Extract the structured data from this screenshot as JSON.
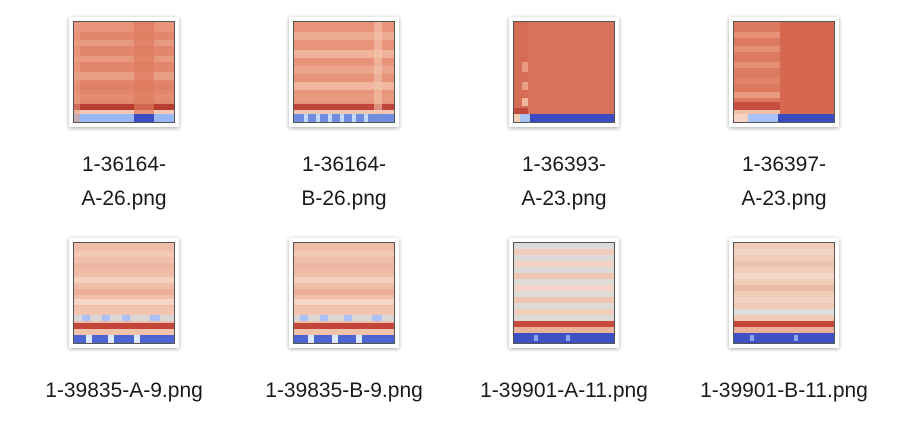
{
  "files": [
    {
      "line1": "1-36164-",
      "line2": "A-26.png",
      "style": "warm-a"
    },
    {
      "line1": "1-36164-",
      "line2": "B-26.png",
      "style": "warm-b"
    },
    {
      "line1": "1-36393-",
      "line2": "A-23.png",
      "style": "solid-a"
    },
    {
      "line1": "1-36397-",
      "line2": "A-23.png",
      "style": "solid-b"
    },
    {
      "line1": "1-39835-A-9.png",
      "line2": "",
      "style": "pale-a"
    },
    {
      "line1": "1-39835-B-9.png",
      "line2": "",
      "style": "pale-b"
    },
    {
      "line1": "1-39901-A-11.png",
      "line2": "",
      "style": "light-a"
    },
    {
      "line1": "1-39901-B-11.png",
      "line2": "",
      "style": "light-b"
    }
  ],
  "colors": {
    "warm_red": "#d9765d",
    "mid_red": "#e58d72",
    "pale_peach": "#f0c3ac",
    "light_peach": "#f3d3c4",
    "gray_pale": "#dcd9d6",
    "dark_red": "#b5352c",
    "blue_dark": "#3a4cc0",
    "blue_light": "#9ab8f5"
  }
}
